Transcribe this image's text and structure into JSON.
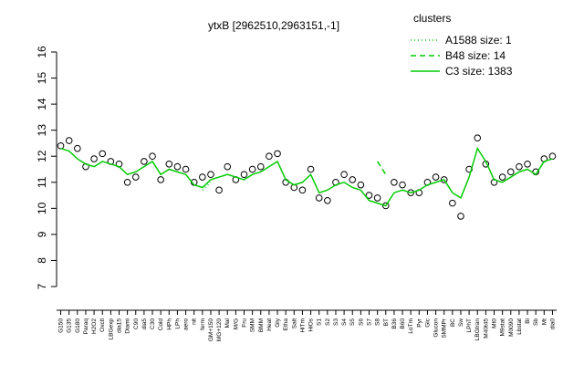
{
  "chart_data": {
    "type": "line",
    "title": "ytxB [2962510,2963151,-1]",
    "legend_title": "clusters",
    "legend_position": "top-right",
    "categories": [
      "G150",
      "G135",
      "G180",
      "Paraq",
      "H2O2",
      "Oxctl",
      "LBGexp",
      "dia15",
      "Diami",
      "C90",
      "dia5",
      "C30",
      "Cold",
      "HPh",
      "LPh",
      "aero",
      "nit",
      "ferm",
      "GM+150",
      "MG+120",
      "Mal",
      "M/G",
      "Fru",
      "SMM",
      "BMM",
      "Heat",
      "Gly",
      "Etha",
      "Salt",
      "HiTm",
      "HiOs",
      "S1",
      "S2",
      "S3",
      "S4",
      "S5",
      "S6",
      "S7",
      "S8",
      "BT",
      "B36",
      "B60",
      "LoTm",
      "Pyr",
      "Glc",
      "Glucon",
      "SMMPr",
      "BC",
      "Sw",
      "LPhT",
      "LBGtran",
      "M40t45",
      "Mt0",
      "M9stat",
      "M0090",
      "Lbstat",
      "Bl",
      "Sb",
      "Mt",
      "dia0"
    ],
    "series": [
      {
        "name": "A1588 size: 1",
        "color": "#00cc00",
        "linestyle": "dotted",
        "values": [
          null,
          null,
          null,
          null,
          null,
          null,
          null,
          null,
          null,
          null,
          null,
          null,
          null,
          null,
          null,
          null,
          null,
          10.7,
          11.0,
          null,
          null,
          null,
          null,
          null,
          null,
          null,
          null,
          null,
          null,
          null,
          null,
          null,
          null,
          null,
          null,
          null,
          null,
          null,
          null,
          null,
          null,
          null,
          null,
          null,
          null,
          null,
          null,
          null,
          null,
          null,
          null,
          null,
          null,
          null,
          null,
          null,
          null,
          null,
          null,
          null
        ]
      },
      {
        "name": "B48 size: 14",
        "color": "#00cc00",
        "linestyle": "dashed",
        "values": [
          null,
          null,
          null,
          null,
          null,
          null,
          null,
          null,
          null,
          null,
          null,
          null,
          null,
          null,
          null,
          null,
          null,
          null,
          null,
          null,
          null,
          null,
          null,
          null,
          null,
          null,
          null,
          null,
          null,
          null,
          null,
          null,
          null,
          null,
          null,
          null,
          null,
          null,
          11.8,
          11.3,
          null,
          null,
          null,
          null,
          null,
          null,
          null,
          null,
          null,
          null,
          null,
          null,
          null,
          null,
          null,
          null,
          null,
          null,
          null,
          null
        ]
      },
      {
        "name": "C3 size: 1383",
        "color": "#00cc00",
        "linestyle": "solid",
        "values": [
          12.3,
          12.2,
          11.9,
          11.7,
          11.6,
          11.8,
          11.7,
          11.6,
          11.3,
          11.4,
          11.6,
          11.8,
          11.3,
          11.5,
          11.4,
          11.3,
          10.9,
          10.8,
          11.1,
          11.2,
          11.3,
          11.2,
          11.1,
          11.3,
          11.4,
          11.6,
          11.8,
          11.1,
          10.9,
          11.0,
          11.3,
          10.6,
          10.7,
          10.9,
          11.0,
          10.8,
          10.7,
          10.3,
          10.2,
          10.1,
          10.6,
          10.7,
          10.6,
          10.7,
          10.9,
          11.0,
          11.1,
          10.6,
          10.4,
          11.2,
          12.3,
          11.8,
          11.1,
          11.0,
          11.2,
          11.4,
          11.5,
          11.3,
          11.8,
          11.9
        ]
      }
    ],
    "points": [
      12.4,
      12.6,
      12.3,
      11.6,
      11.9,
      12.1,
      11.8,
      11.7,
      11.0,
      11.2,
      11.8,
      12.0,
      11.1,
      11.7,
      11.6,
      11.5,
      11.0,
      11.2,
      11.3,
      10.7,
      11.6,
      11.1,
      11.3,
      11.5,
      11.6,
      12.0,
      12.1,
      11.0,
      10.8,
      10.7,
      11.5,
      10.4,
      10.3,
      11.0,
      11.3,
      11.1,
      10.9,
      10.5,
      10.4,
      10.1,
      11.0,
      10.9,
      10.6,
      10.6,
      11.0,
      11.2,
      11.1,
      10.2,
      9.7,
      11.5,
      12.7,
      11.7,
      11.0,
      11.2,
      11.4,
      11.6,
      11.7,
      11.4,
      11.9,
      12.0
    ],
    "ylim": [
      7,
      16
    ],
    "yticks": [
      7,
      8,
      9,
      10,
      11,
      12,
      13,
      14,
      15,
      16
    ]
  }
}
